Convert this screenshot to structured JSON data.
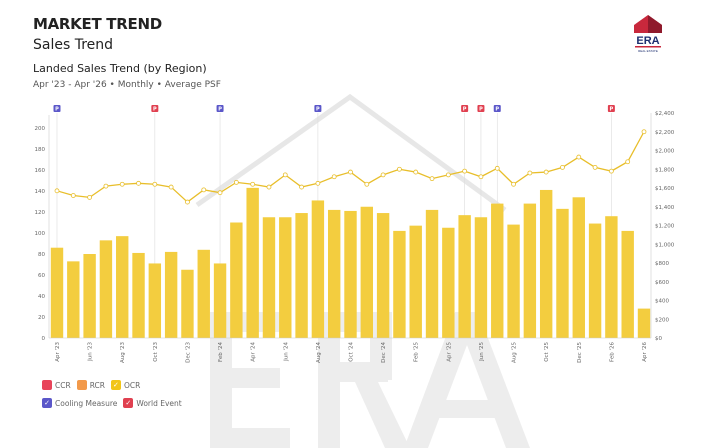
{
  "header": {
    "title": "MARKET TREND",
    "subtitle": "Sales Trend",
    "chart_title": "Landed Sales Trend (by Region)",
    "chart_subtitle": "Apr '23 - Apr '26 • Monthly • Average PSF",
    "logo_text": "ERA",
    "logo_subtext": "REAL ESTATE"
  },
  "colors": {
    "bar": "#f3cd3f",
    "line": "#e8be2a",
    "ccr": "#e8445a",
    "rcr": "#f2994a",
    "ocr": "#f2c518",
    "cooling": "#5b57c9",
    "world": "#e04050"
  },
  "legend": {
    "items": [
      {
        "label": "CCR",
        "color": "#e8445a",
        "checked": false
      },
      {
        "label": "RCR",
        "color": "#f2994a",
        "checked": false
      },
      {
        "label": "OCR",
        "color": "#f2c518",
        "checked": true
      },
      {
        "label": "Cooling Measure",
        "color": "#5b57c9",
        "checked": true
      },
      {
        "label": "World Event",
        "color": "#e04050",
        "checked": true
      }
    ]
  },
  "chart_data": {
    "type": "bar+line",
    "categories": [
      "Apr '23",
      "May '23",
      "Jun '23",
      "Jul '23",
      "Aug '23",
      "Sep '23",
      "Oct '23",
      "Nov '23",
      "Dec '23",
      "Jan '24",
      "Feb '24",
      "Mar '24",
      "Apr '24",
      "May '24",
      "Jun '24",
      "Jul '24",
      "Aug '24",
      "Sep '24",
      "Oct '24",
      "Nov '24",
      "Dec '24",
      "Jan '25",
      "Feb '25",
      "Mar '25",
      "Apr '25",
      "May '25",
      "Jun '25",
      "Jul '25",
      "Aug '25",
      "Sep '25",
      "Oct '25",
      "Nov '25",
      "Dec '25",
      "Jan '26",
      "Feb '26",
      "Mar '26",
      "Apr '26"
    ],
    "tick_labels": [
      "Apr '23",
      "Jun '23",
      "Aug '23",
      "Oct '23",
      "Dec '23",
      "Feb '24",
      "Apr '24",
      "Jun '24",
      "Aug '24",
      "Oct '24",
      "Dec '24",
      "Feb '25",
      "Apr '25",
      "Jun '25",
      "Aug '25",
      "Oct '25",
      "Dec '25",
      "Feb '26",
      "Apr '26"
    ],
    "series": [
      {
        "type": "bar",
        "axis": "left",
        "values": [
          86,
          73,
          80,
          93,
          97,
          81,
          71,
          82,
          65,
          84,
          71,
          110,
          143,
          115,
          115,
          119,
          131,
          122,
          121,
          125,
          119,
          102,
          107,
          122,
          105,
          117,
          115,
          128,
          108,
          128,
          141,
          123,
          134,
          109,
          116,
          102,
          28
        ]
      },
      {
        "type": "line",
        "axis": "right",
        "values": [
          1570,
          1520,
          1500,
          1620,
          1640,
          1650,
          1640,
          1610,
          1450,
          1580,
          1550,
          1660,
          1640,
          1610,
          1740,
          1610,
          1650,
          1720,
          1770,
          1640,
          1740,
          1800,
          1770,
          1700,
          1740,
          1780,
          1720,
          1810,
          1640,
          1760,
          1770,
          1820,
          1930,
          1820,
          1780,
          1880,
          2200
        ]
      }
    ],
    "left_axis": {
      "ylim": [
        0,
        200
      ],
      "ticks": [
        "0",
        "20",
        "40",
        "60",
        "80",
        "100",
        "120",
        "140",
        "160",
        "180",
        "200"
      ]
    },
    "right_axis": {
      "ylim": [
        0,
        2400
      ],
      "ticks": [
        "$0",
        "$200",
        "$400",
        "$600",
        "$800",
        "$1,000",
        "$1,200",
        "$1,400",
        "$1,600",
        "$1,800",
        "$2,000",
        "$2,200",
        "$2,400"
      ]
    },
    "events": [
      {
        "month": "Apr '23",
        "type": "cooling",
        "label": "P"
      },
      {
        "month": "Oct '23",
        "type": "world",
        "label": "P"
      },
      {
        "month": "Feb '24",
        "type": "cooling",
        "label": "P"
      },
      {
        "month": "Aug '24",
        "type": "cooling",
        "label": "P"
      },
      {
        "month": "May '25",
        "type": "world",
        "label": "P"
      },
      {
        "month": "Jun '25",
        "type": "world",
        "label": "P"
      },
      {
        "month": "Jul '25",
        "type": "cooling",
        "label": "P"
      },
      {
        "month": "Feb '26",
        "type": "world",
        "label": "P"
      }
    ],
    "grid": false,
    "legend_position": "bottom-left"
  }
}
